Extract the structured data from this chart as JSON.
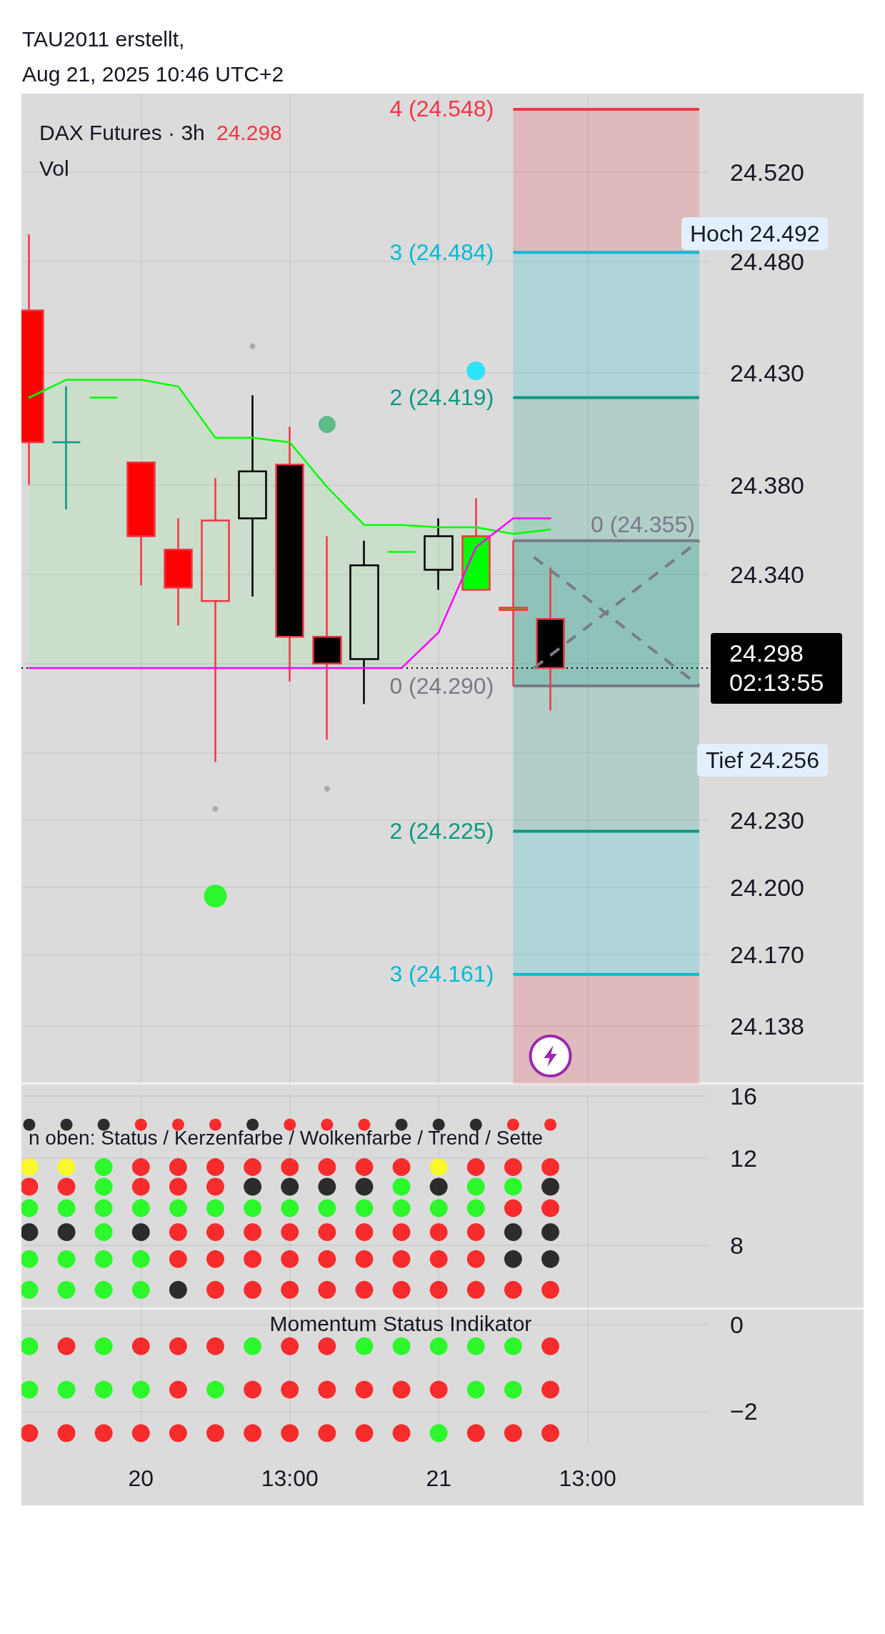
{
  "chart_data": [
    {
      "type": "candlestick",
      "title": "DAX Futures · 3h",
      "categories": [
        null,
        null,
        null,
        "20",
        null,
        null,
        null,
        "13:00",
        null,
        null,
        null,
        "21",
        null,
        null,
        null,
        "13:00",
        null,
        null,
        null
      ],
      "series": [
        {
          "color": "#f23645",
          "ohlc": [
            [
              24.458,
              24.492,
              24.38,
              24.399
            ],
            null,
            null,
            [
              24.39,
              24.39,
              24.335,
              24.357
            ],
            [
              24.351,
              24.365,
              24.317,
              24.334
            ],
            [
              24.328,
              24.383,
              24.256,
              24.364
            ],
            null,
            [
              24.389,
              24.406,
              24.292,
              24.312
            ],
            [
              24.312,
              24.357,
              24.266,
              24.3
            ],
            null,
            null,
            null,
            [
              24.357,
              24.374,
              24.333,
              24.333
            ],
            [
              24.325,
              24.355,
              24.29,
              24.324
            ],
            [
              24.32,
              24.343,
              24.279,
              24.298
            ],
            null,
            null,
            null,
            null
          ],
          "colors": [
            "#ff0000",
            null,
            null,
            "#ff0000",
            "#ff0000",
            null,
            null,
            "#000000",
            "#000000",
            null,
            null,
            null,
            "#00ff00",
            "#00ff00",
            "#000000",
            null,
            null,
            null,
            null
          ]
        },
        {
          "color": "#089981",
          "ohlc": [
            null,
            [
              24.399,
              24.424,
              24.369,
              24.399
            ],
            null,
            null,
            null,
            null,
            null,
            null,
            null,
            null,
            null,
            null,
            null,
            null,
            null,
            null,
            null,
            null,
            null
          ]
        },
        {
          "color": "#000000",
          "ohlc": [
            null,
            null,
            null,
            null,
            null,
            null,
            [
              24.365,
              24.42,
              24.33,
              24.386
            ],
            null,
            null,
            [
              24.302,
              24.355,
              24.282,
              24.344
            ],
            null,
            [
              24.342,
              24.365,
              24.333,
              24.357
            ],
            null,
            null,
            null,
            null,
            null,
            null,
            null
          ]
        },
        {
          "color": "#00ff00",
          "ohlc": [
            null,
            null,
            [
              24.419,
              24.419,
              24.419,
              24.419
            ],
            null,
            null,
            null,
            null,
            null,
            null,
            null,
            [
              24.35,
              24.35,
              24.35,
              24.35
            ],
            null,
            null,
            null,
            null,
            null,
            null,
            null,
            null
          ]
        },
        {
          "type": "line",
          "color": "#00ff00",
          "values": [
            24.419,
            24.427,
            24.427,
            24.427,
            24.424,
            24.401,
            24.401,
            24.399,
            24.379,
            24.362,
            24.362,
            24.361,
            24.361,
            24.358,
            24.36,
            null,
            null,
            null,
            null
          ],
          "upper": [
            24.419,
            24.427,
            24.427,
            24.427,
            24.424,
            24.401,
            24.401,
            24.399,
            24.379,
            24.362,
            24.362,
            24.361,
            24.361,
            24.358,
            24.36,
            null,
            null,
            null,
            null
          ],
          "lower": [
            24.298,
            24.298,
            24.298,
            24.298,
            24.298,
            24.298,
            24.298,
            24.298,
            24.298,
            24.298,
            24.298,
            24.314,
            24.352,
            24.365,
            24.365,
            null,
            null,
            null,
            null
          ]
        },
        {
          "type": "line",
          "color": "#ff00ff",
          "values": [
            24.298,
            24.298,
            24.298,
            24.298,
            24.298,
            24.298,
            24.298,
            24.298,
            24.298,
            24.298,
            24.298,
            24.314,
            24.352,
            24.365,
            24.365,
            null,
            null,
            null,
            null
          ]
        },
        {
          "type": "scatter",
          "color": "#9e9e9e",
          "marker": "circle",
          "values": [
            null,
            null,
            null,
            null,
            null,
            24.235,
            24.442,
            null,
            24.244,
            null,
            null,
            null,
            null,
            null,
            null,
            null,
            null,
            null,
            null
          ]
        },
        {
          "type": "scatter",
          "color": "#3cb371",
          "marker": "circle",
          "values": [
            null,
            null,
            null,
            null,
            null,
            null,
            null,
            null,
            24.407,
            null,
            null,
            null,
            null,
            null,
            null,
            null,
            null,
            null,
            null
          ]
        },
        {
          "type": "scatter",
          "color": "#00e5ff",
          "marker": "circle",
          "values": [
            null,
            null,
            null,
            null,
            null,
            null,
            null,
            null,
            null,
            null,
            null,
            null,
            24.431,
            null,
            null,
            null,
            null,
            null,
            null
          ]
        },
        {
          "type": "scatter",
          "color": "#00ff00",
          "marker": "circle",
          "values": [
            null,
            null,
            null,
            null,
            null,
            24.196,
            null,
            null,
            null,
            null,
            null,
            null,
            null,
            null,
            null,
            null,
            null,
            null,
            null
          ]
        }
      ],
      "ylim": [
        24.112,
        24.555
      ],
      "yticks": [
        {
          "value": 24.52,
          "label": "24.520"
        },
        {
          "value": 24.48,
          "label": "24.480"
        },
        {
          "value": 24.43,
          "label": "24.430"
        },
        {
          "value": 24.38,
          "label": "24.380"
        },
        {
          "value": 24.34,
          "label": "24.340"
        },
        {
          "value": 24.3,
          "label": null
        },
        {
          "value": 24.26,
          "label": null
        },
        {
          "value": 24.23,
          "label": "24.230"
        },
        {
          "value": 24.2,
          "label": "24.200"
        },
        {
          "value": 24.17,
          "label": "24.170"
        },
        24.138
      ],
      "grid": true,
      "tick_labels": "y",
      "ref_lines": [
        {
          "axis": "y",
          "value": 24.548,
          "label": "4 (24.548)",
          "color": "#f23645"
        },
        {
          "axis": "y",
          "value": 24.484,
          "label": "3 (24.484)",
          "color": "#00bcd4"
        },
        {
          "axis": "y",
          "value": 24.419,
          "label": "2 (24.419)",
          "color": "#089981"
        },
        {
          "axis": "y",
          "value": 24.355,
          "label": "0 (24.355)",
          "color": "#787b86"
        },
        {
          "axis": "y",
          "value": 24.29,
          "label": "0 (24.290)",
          "color": "#787b86"
        },
        {
          "axis": "y",
          "value": 24.225,
          "label": "2 (24.225)",
          "color": "#089981"
        },
        {
          "axis": "y",
          "value": 24.161,
          "label": "3 (24.161)",
          "color": "#00bcd4"
        },
        {
          "axis": "y",
          "value": 24.298,
          "label": "24.298\n02:13:55",
          "color": "#000000",
          "line_style": "dotted"
        }
      ],
      "bands": [
        {
          "axis": "y",
          "from": 24.484,
          "to": 24.548,
          "color": "#f23645"
        },
        {
          "axis": "y",
          "from": 24.419,
          "to": 24.484,
          "color": "#00bcd4"
        },
        {
          "axis": "y",
          "from": 24.225,
          "to": 24.419,
          "color": "#089981"
        },
        {
          "axis": "y",
          "from": 24.29,
          "to": 24.355,
          "color": "#089981"
        },
        {
          "axis": "y",
          "from": 24.161,
          "to": 24.225,
          "color": "#00bcd4"
        },
        {
          "axis": "y",
          "from": 24.112,
          "to": 24.161,
          "color": "#f23645"
        }
      ],
      "annotations": [
        "TAU2011 erstellt,",
        "Aug 21, 2025 10:46 UTC+2",
        "24.298",
        "Vol",
        "Hoch 24.492",
        "Tief 24.256"
      ]
    },
    {
      "type": "scatter",
      "categories": [
        null,
        null,
        null,
        "20",
        null,
        null,
        null,
        "13:00",
        null,
        null,
        null,
        "21",
        null,
        null,
        null,
        "13:00",
        null,
        null,
        null
      ],
      "log": true,
      "ylim": [
        5.95,
        16.15
      ],
      "yticks": [
        8,
        12,
        16
      ],
      "grid": true,
      "tick_labels": "y",
      "marker": "circle",
      "annotations": [
        "n oben: Status / Kerzenfarbe / Wolkenfarbe / Trend / Sette"
      ],
      "series": [
        {
          "values": [
            14,
            14,
            14,
            14,
            14,
            14,
            14,
            14,
            14,
            14,
            14,
            14,
            14,
            14,
            14,
            null,
            null,
            null,
            null
          ],
          "colors": [
            "#000000",
            "#000000",
            "#000000",
            "#ff0000",
            "#ff0000",
            "#ff0000",
            "#000000",
            "#ff0000",
            "#ff0000",
            "#ff0000",
            "#000000",
            "#000000",
            "#000000",
            "#ff0000",
            "#ff0000",
            null,
            null,
            null,
            null
          ]
        },
        {
          "values": [
            11.5,
            11.5,
            11.5,
            11.5,
            11.5,
            11.5,
            11.5,
            11.5,
            11.5,
            11.5,
            11.5,
            11.5,
            11.5,
            11.5,
            11.5,
            null,
            null,
            null,
            null
          ],
          "colors": [
            "#ffff00",
            "#ffff00",
            "#00ff00",
            "#ff0000",
            "#ff0000",
            "#ff0000",
            "#ff0000",
            "#ff0000",
            "#ff0000",
            "#ff0000",
            "#ff0000",
            "#ffff00",
            "#ff0000",
            "#ff0000",
            "#ff0000",
            null,
            null,
            null,
            null
          ]
        },
        {
          "values": [
            10.5,
            10.5,
            10.5,
            10.5,
            10.5,
            10.5,
            10.5,
            10.5,
            10.5,
            10.5,
            10.5,
            10.5,
            10.5,
            10.5,
            10.5,
            null,
            null,
            null,
            null
          ],
          "colors": [
            "#ff0000",
            "#ff0000",
            "#00ff00",
            "#ff0000",
            "#ff0000",
            "#ff0000",
            "#000000",
            "#000000",
            "#000000",
            "#000000",
            "#00ff00",
            "#000000",
            "#00ff00",
            "#00ff00",
            "#000000",
            null,
            null,
            null,
            null
          ]
        },
        {
          "values": [
            9.5,
            9.5,
            9.5,
            9.5,
            9.5,
            9.5,
            9.5,
            9.5,
            9.5,
            9.5,
            9.5,
            9.5,
            9.5,
            9.5,
            9.5,
            null,
            null,
            null,
            null
          ],
          "colors": [
            "#00ff00",
            "#00ff00",
            "#00ff00",
            "#00ff00",
            "#00ff00",
            "#00ff00",
            "#00ff00",
            "#00ff00",
            "#00ff00",
            "#00ff00",
            "#00ff00",
            "#00ff00",
            "#00ff00",
            "#ff0000",
            "#ff0000",
            null,
            null,
            null,
            null
          ]
        },
        {
          "values": [
            8.5,
            8.5,
            8.5,
            8.5,
            8.5,
            8.5,
            8.5,
            8.5,
            8.5,
            8.5,
            8.5,
            8.5,
            8.5,
            8.5,
            8.5,
            null,
            null,
            null,
            null
          ],
          "colors": [
            "#000000",
            "#000000",
            "#00ff00",
            "#000000",
            "#ff0000",
            "#ff0000",
            "#ff0000",
            "#ff0000",
            "#ff0000",
            "#ff0000",
            "#ff0000",
            "#ff0000",
            "#ff0000",
            "#000000",
            "#000000",
            null,
            null,
            null,
            null
          ]
        },
        {
          "values": [
            7.5,
            7.5,
            7.5,
            7.5,
            7.5,
            7.5,
            7.5,
            7.5,
            7.5,
            7.5,
            7.5,
            7.5,
            7.5,
            7.5,
            7.5,
            null,
            null,
            null,
            null
          ],
          "colors": [
            "#00ff00",
            "#00ff00",
            "#00ff00",
            "#00ff00",
            "#ff0000",
            "#ff0000",
            "#ff0000",
            "#ff0000",
            "#ff0000",
            "#ff0000",
            "#ff0000",
            "#ff0000",
            "#ff0000",
            "#000000",
            "#000000",
            null,
            null,
            null,
            null
          ]
        },
        {
          "values": [
            6.5,
            6.5,
            6.5,
            6.5,
            6.5,
            6.5,
            6.5,
            6.5,
            6.5,
            6.5,
            6.5,
            6.5,
            6.5,
            6.5,
            6.5,
            null,
            null,
            null,
            null
          ],
          "colors": [
            "#00ff00",
            "#00ff00",
            "#00ff00",
            "#00ff00",
            "#000000",
            "#ff0000",
            "#ff0000",
            "#ff0000",
            "#ff0000",
            "#ff0000",
            "#ff0000",
            "#ff0000",
            "#ff0000",
            "#ff0000",
            "#ff0000",
            null,
            null,
            null,
            null
          ]
        }
      ]
    },
    {
      "type": "scatter",
      "title": "Momentum Status Indikator",
      "categories": [
        null,
        null,
        null,
        "20",
        null,
        null,
        null,
        "13:00",
        null,
        null,
        null,
        "21",
        null,
        null,
        null,
        "13:00",
        null,
        null,
        null
      ],
      "ylim": [
        -2.75,
        0.36
      ],
      "yticks": [
        0,
        {
          "value": -2,
          "label": "−2"
        }
      ],
      "grid": true,
      "marker": "circle",
      "series": [
        {
          "values": [
            -0.5,
            -0.5,
            -0.5,
            -0.5,
            -0.5,
            -0.5,
            -0.5,
            -0.5,
            -0.5,
            -0.5,
            -0.5,
            -0.5,
            -0.5,
            -0.5,
            -0.5,
            null,
            null,
            null,
            null
          ],
          "colors": [
            "#00ff00",
            "#ff0000",
            "#00ff00",
            "#ff0000",
            "#ff0000",
            "#ff0000",
            "#00ff00",
            "#ff0000",
            "#ff0000",
            "#00ff00",
            "#00ff00",
            "#00ff00",
            "#00ff00",
            "#00ff00",
            "#ff0000",
            null,
            null,
            null,
            null
          ]
        },
        {
          "values": [
            -1.5,
            -1.5,
            -1.5,
            -1.5,
            -1.5,
            -1.5,
            -1.5,
            -1.5,
            -1.5,
            -1.5,
            -1.5,
            -1.5,
            -1.5,
            -1.5,
            -1.5,
            null,
            null,
            null,
            null
          ],
          "colors": [
            "#00ff00",
            "#00ff00",
            "#00ff00",
            "#00ff00",
            "#ff0000",
            "#00ff00",
            "#ff0000",
            "#ff0000",
            "#ff0000",
            "#ff0000",
            "#ff0000",
            "#ff0000",
            "#00ff00",
            "#00ff00",
            "#ff0000",
            null,
            null,
            null,
            null
          ]
        },
        {
          "values": [
            -2.5,
            -2.5,
            -2.5,
            -2.5,
            -2.5,
            -2.5,
            -2.5,
            -2.5,
            -2.5,
            -2.5,
            -2.5,
            -2.5,
            -2.5,
            -2.5,
            -2.5,
            null,
            null,
            null,
            null
          ],
          "colors": [
            "#ff0000",
            "#ff0000",
            "#ff0000",
            "#ff0000",
            "#ff0000",
            "#ff0000",
            "#ff0000",
            "#ff0000",
            "#ff0000",
            "#ff0000",
            "#ff0000",
            "#00ff00",
            "#ff0000",
            "#ff0000",
            "#ff0000",
            null,
            null,
            null,
            null
          ]
        }
      ]
    }
  ]
}
